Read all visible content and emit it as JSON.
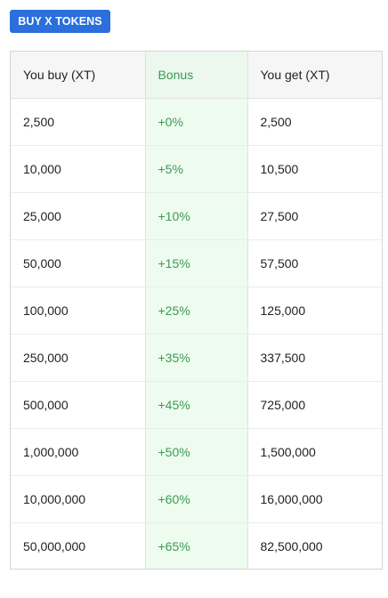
{
  "button": {
    "label": "BUY X TOKENS"
  },
  "table": {
    "headers": {
      "you_buy": "You buy (XT)",
      "bonus": "Bonus",
      "you_get": "You get (XT)"
    },
    "rows": [
      {
        "buy": "2,500",
        "bonus": "+0%",
        "get": "2,500"
      },
      {
        "buy": "10,000",
        "bonus": "+5%",
        "get": "10,500"
      },
      {
        "buy": "25,000",
        "bonus": "+10%",
        "get": "27,500"
      },
      {
        "buy": "50,000",
        "bonus": "+15%",
        "get": "57,500"
      },
      {
        "buy": "100,000",
        "bonus": "+25%",
        "get": "125,000"
      },
      {
        "buy": "250,000",
        "bonus": "+35%",
        "get": "337,500"
      },
      {
        "buy": "500,000",
        "bonus": "+45%",
        "get": "725,000"
      },
      {
        "buy": "1,000,000",
        "bonus": "+50%",
        "get": "1,500,000"
      },
      {
        "buy": "10,000,000",
        "bonus": "+60%",
        "get": "16,000,000"
      },
      {
        "buy": "50,000,000",
        "bonus": "+65%",
        "get": "82,500,000"
      }
    ]
  },
  "colors": {
    "button_bg": "#2a6fdb",
    "bonus_text": "#3a9a57",
    "bonus_bg": "#eefbef",
    "header_bg": "#f6f6f6"
  }
}
